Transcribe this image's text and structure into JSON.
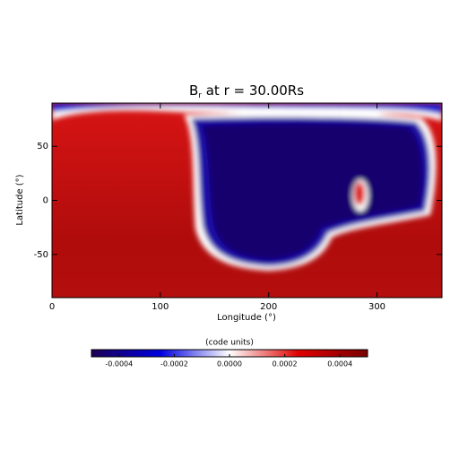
{
  "chart_data": {
    "type": "heatmap",
    "title": [
      "B",
      "r",
      " at r = 30.00Rs"
    ],
    "x_label": "Longitude (°)",
    "y_label": "Latitude (°)",
    "xlim": [
      0,
      360
    ],
    "xticks": [
      0,
      100,
      200,
      300
    ],
    "ylim": [
      -90,
      90
    ],
    "yticks": [
      -50,
      0,
      50
    ],
    "colorbar": {
      "label": "(code units)",
      "clim": [
        -0.0005,
        0.0005
      ],
      "ticks": [
        -0.0004,
        -0.0002,
        {
          "value": 0,
          "label": "0.0000"
        },
        0.0002,
        0.0004
      ],
      "colormap": [
        "#1c0055",
        "#0000e0",
        "#ffffff",
        "#e00000",
        "#780000"
      ]
    }
  }
}
